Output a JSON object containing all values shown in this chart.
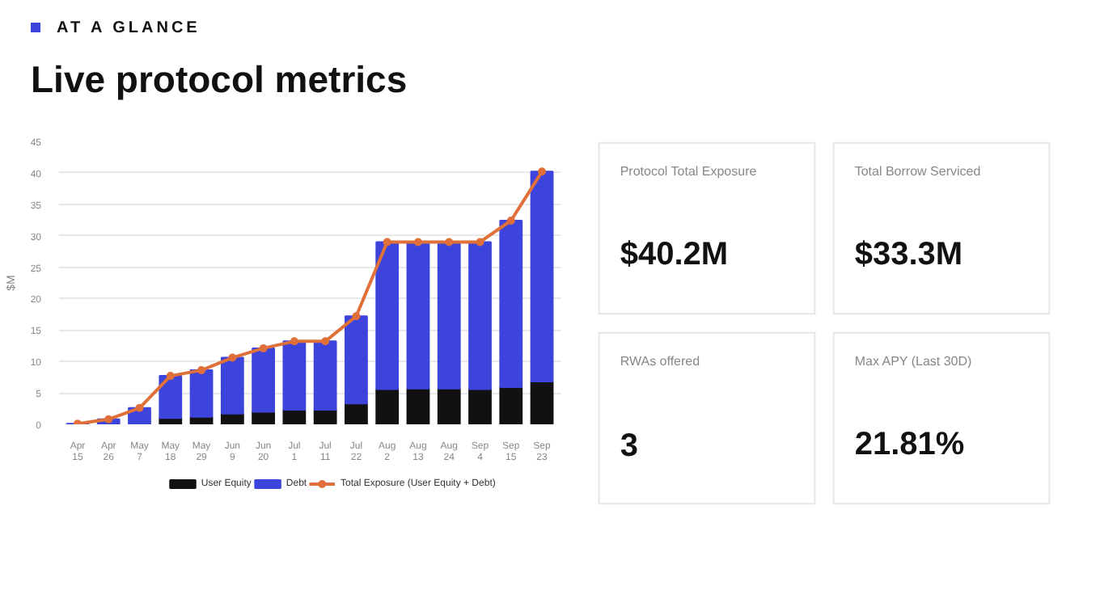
{
  "chart_data": [
    {
      "type": "bar",
      "subtitle": "AT A GLANCE",
      "title": "Live protocol metrics",
      "ylabel": "$M",
      "stacked": true,
      "ylim": [
        0,
        45
      ],
      "yticks": [
        0,
        5,
        10,
        15,
        20,
        25,
        30,
        35,
        40,
        45
      ],
      "grid": "y",
      "legend": "bottom",
      "categories": [
        "Apr\n15",
        "Apr\n26",
        "May\n7",
        "May\n18",
        "May\n29",
        "Jun\n9",
        "Jun\n20",
        "Jul\n1",
        "Jul\n11",
        "Jul\n22",
        "Aug\n2",
        "Aug\n13",
        "Aug\n24",
        "Sep\n4",
        "Sep\n15",
        "Sep\n23"
      ],
      "series": [
        {
          "name": "User Equity",
          "type": "bar",
          "color": "#111111",
          "values": [
            0,
            0,
            0,
            1.0,
            1.2,
            1.7,
            2.0,
            2.3,
            2.3,
            3.3,
            5.6,
            5.7,
            5.7,
            5.6,
            5.9,
            6.8
          ]
        },
        {
          "name": "Debt",
          "type": "bar",
          "color": "#3d44db",
          "values": [
            0.1,
            0.8,
            2.6,
            6.7,
            7.4,
            8.9,
            10.1,
            10.9,
            10.9,
            13.9,
            23.4,
            23.3,
            23.3,
            23.4,
            26.5,
            33.4
          ]
        },
        {
          "name": "Total Exposure (User Equity + Debt)",
          "type": "line",
          "marker": "circle",
          "color": "#e0703a",
          "values": [
            0.1,
            0.8,
            2.6,
            7.7,
            8.6,
            10.6,
            12.1,
            13.2,
            13.2,
            17.2,
            29.0,
            29.0,
            29.0,
            29.0,
            32.4,
            40.2
          ]
        }
      ]
    },
    {
      "type": "other",
      "annotations": [
        "Protocol Total Exposure",
        "$40.2M",
        "Total Borrow Serviced",
        "$33.3M",
        "RWAs offered",
        "3",
        "Max APY (Last 30D)",
        "21.81%"
      ]
    }
  ]
}
